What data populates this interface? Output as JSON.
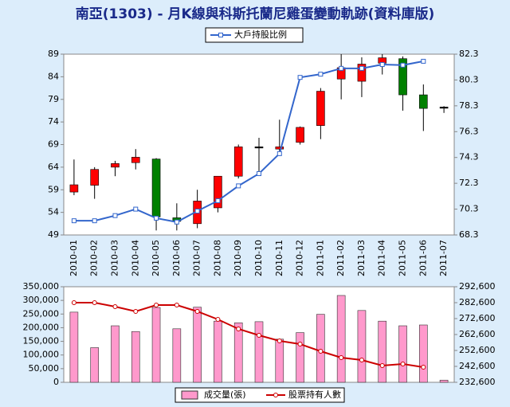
{
  "chart_data": [
    {
      "type": "candlestick",
      "title": "南亞(1303) - 月K線與科斯托蘭尼雞蛋變動軌跡(資料庫版)",
      "categories": [
        "2010-01",
        "2010-02",
        "2010-03",
        "2010-04",
        "2010-05",
        "2010-06",
        "2010-07",
        "2010-08",
        "2010-09",
        "2010-10",
        "2010-11",
        "2010-12",
        "2011-01",
        "2011-02",
        "2011-03",
        "2011-04",
        "2011-05",
        "2011-06",
        "2011-07"
      ],
      "open": [
        58.5,
        60,
        64,
        65,
        65.8,
        52.8,
        51.5,
        55,
        62,
        68.5,
        68,
        69.5,
        73.2,
        83.5,
        83,
        87,
        88,
        80,
        77.3
      ],
      "high": [
        65.7,
        64,
        65.4,
        68,
        66,
        56,
        59,
        62,
        69,
        70.5,
        74.5,
        73,
        81.5,
        89,
        88.3,
        89,
        88.5,
        82.3,
        77.5
      ],
      "low": [
        57.8,
        57,
        62,
        63.5,
        50,
        50,
        50.5,
        54,
        61.5,
        63,
        66.5,
        69,
        70.2,
        79,
        79.5,
        84.5,
        76.5,
        72,
        76
      ],
      "close": [
        60.1,
        63.5,
        64.8,
        66.2,
        53,
        52,
        56.5,
        62,
        68.5,
        68.5,
        68.5,
        72.8,
        80.8,
        86,
        86.8,
        88.2,
        80,
        77,
        77.3
      ],
      "up_color": "#ff0000",
      "down_color": "#008000",
      "ylim": [
        49,
        89
      ],
      "yticks": [
        49,
        54,
        59,
        64,
        69,
        74,
        79,
        84,
        89
      ],
      "y2lim": [
        68.3,
        82.3
      ],
      "y2ticks": [
        68.3,
        70.3,
        72.3,
        74.3,
        76.3,
        78.3,
        80.3,
        82.3
      ],
      "series": [
        {
          "name": "大戶持股比例",
          "color": "#3366cc",
          "axis": "y2",
          "values": [
            69.4,
            69.4,
            69.8,
            70.3,
            69.6,
            69.3,
            70.15,
            70.95,
            72.1,
            73.05,
            74.6,
            80.5,
            80.75,
            81.2,
            81.2,
            81.5,
            81.45,
            81.75,
            null
          ]
        }
      ]
    },
    {
      "type": "bar",
      "ylim": [
        0,
        350000
      ],
      "yticks": [
        0,
        {
          "value": 50000,
          "label": "50,000"
        },
        {
          "value": 100000,
          "label": "100,000"
        },
        {
          "value": 150000,
          "label": "150,000"
        },
        {
          "value": 200000,
          "label": "200,000"
        },
        {
          "value": 250000,
          "label": "250,000"
        },
        {
          "value": 300000,
          "label": "300,000"
        },
        {
          "value": 350000,
          "label": "350,000"
        }
      ],
      "y2lim": [
        232600,
        292600
      ],
      "y2ticks": [
        {
          "value": 232600,
          "label": "232,600"
        },
        {
          "value": 242600,
          "label": "242,600"
        },
        {
          "value": 252600,
          "label": "252,600"
        },
        {
          "value": 262600,
          "label": "262,600"
        },
        {
          "value": 272600,
          "label": "272,600"
        },
        {
          "value": 282600,
          "label": "282,600"
        },
        {
          "value": 292600,
          "label": "292,600"
        }
      ],
      "series": [
        {
          "name": "成交量(張)",
          "color": "#ff99cc",
          "values": [
            257000,
            127000,
            207000,
            186000,
            274000,
            196000,
            275000,
            224000,
            218000,
            222000,
            158000,
            182000,
            249000,
            318000,
            263000,
            224000,
            207000,
            210000,
            8000
          ]
        },
        {
          "name": "股票持有人數",
          "color": "#cc0000",
          "axis": "y2",
          "values": [
            282600,
            282600,
            280100,
            277100,
            281100,
            281100,
            277100,
            272100,
            266100,
            262100,
            258600,
            256600,
            252100,
            248100,
            246600,
            243100,
            244100,
            242100,
            null
          ]
        }
      ]
    }
  ]
}
